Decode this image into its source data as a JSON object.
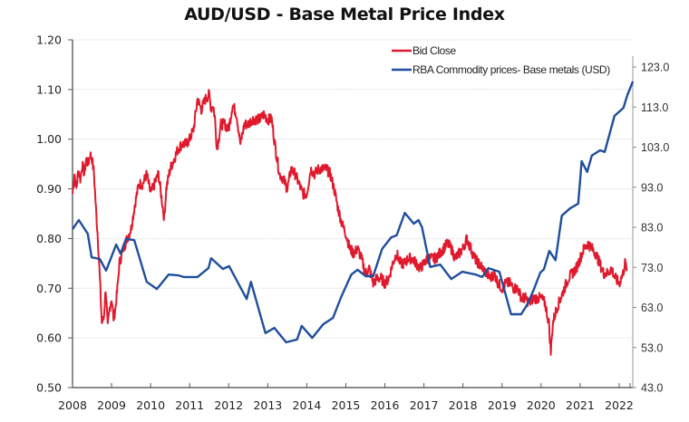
{
  "chart_data": {
    "type": "line",
    "title": "AUD/USD - Base Metal Price Index",
    "xlabel": "",
    "ylabel": "",
    "y2label": "",
    "xlim": [
      2008,
      2022.35
    ],
    "ylim": [
      0.5,
      1.2
    ],
    "y2lim": [
      43.0,
      123.0
    ],
    "grid": true,
    "legend_position": "top-right",
    "x_ticks": [
      "2008",
      "2009",
      "2010",
      "2011",
      "2012",
      "2013",
      "2014",
      "2015",
      "2016",
      "2017",
      "2018",
      "2019",
      "2020",
      "2021",
      "2022"
    ],
    "y_ticks": [
      "0.50",
      "0.60",
      "0.70",
      "0.80",
      "0.90",
      "1.00",
      "1.10",
      "1.20"
    ],
    "y2_ticks": [
      "43.0",
      "53.0",
      "63.0",
      "73.0",
      "83.0",
      "93.0",
      "103.0",
      "113.0",
      "123.0"
    ],
    "series": [
      {
        "name": "Bid Close",
        "axis": "left",
        "color": "#e0192d",
        "x": [
          2008.0,
          2008.05,
          2008.1,
          2008.15,
          2008.2,
          2008.25,
          2008.3,
          2008.35,
          2008.4,
          2008.45,
          2008.5,
          2008.55,
          2008.6,
          2008.65,
          2008.7,
          2008.75,
          2008.8,
          2008.85,
          2008.9,
          2008.95,
          2009.0,
          2009.05,
          2009.1,
          2009.15,
          2009.2,
          2009.3,
          2009.4,
          2009.5,
          2009.6,
          2009.7,
          2009.8,
          2009.9,
          2010.0,
          2010.1,
          2010.2,
          2010.3,
          2010.35,
          2010.4,
          2010.5,
          2010.6,
          2010.7,
          2010.8,
          2010.9,
          2011.0,
          2011.1,
          2011.2,
          2011.3,
          2011.4,
          2011.5,
          2011.55,
          2011.6,
          2011.65,
          2011.7,
          2011.8,
          2011.9,
          2012.0,
          2012.1,
          2012.2,
          2012.3,
          2012.4,
          2012.5,
          2012.6,
          2012.7,
          2012.8,
          2012.9,
          2013.0,
          2013.1,
          2013.2,
          2013.3,
          2013.4,
          2013.5,
          2013.6,
          2013.7,
          2013.8,
          2013.9,
          2014.0,
          2014.1,
          2014.2,
          2014.3,
          2014.4,
          2014.5,
          2014.6,
          2014.7,
          2014.8,
          2014.9,
          2015.0,
          2015.1,
          2015.2,
          2015.3,
          2015.4,
          2015.5,
          2015.6,
          2015.7,
          2015.8,
          2015.9,
          2016.0,
          2016.1,
          2016.2,
          2016.3,
          2016.4,
          2016.5,
          2016.6,
          2016.7,
          2016.8,
          2016.9,
          2017.0,
          2017.1,
          2017.2,
          2017.3,
          2017.4,
          2017.5,
          2017.6,
          2017.7,
          2017.8,
          2017.9,
          2018.0,
          2018.1,
          2018.2,
          2018.3,
          2018.4,
          2018.5,
          2018.6,
          2018.7,
          2018.8,
          2018.9,
          2019.0,
          2019.1,
          2019.2,
          2019.3,
          2019.4,
          2019.5,
          2019.6,
          2019.7,
          2019.8,
          2019.9,
          2020.0,
          2020.1,
          2020.15,
          2020.2,
          2020.25,
          2020.3,
          2020.4,
          2020.5,
          2020.6,
          2020.7,
          2020.8,
          2020.9,
          2021.0,
          2021.1,
          2021.2,
          2021.3,
          2021.4,
          2021.5,
          2021.6,
          2021.7,
          2021.8,
          2021.9,
          2022.0,
          2022.05,
          2022.1,
          2022.15,
          2022.2
        ],
        "values": [
          0.89,
          0.93,
          0.9,
          0.94,
          0.92,
          0.95,
          0.93,
          0.96,
          0.95,
          0.97,
          0.96,
          0.93,
          0.86,
          0.8,
          0.72,
          0.63,
          0.64,
          0.7,
          0.62,
          0.66,
          0.68,
          0.64,
          0.66,
          0.7,
          0.75,
          0.78,
          0.8,
          0.82,
          0.87,
          0.91,
          0.91,
          0.93,
          0.89,
          0.91,
          0.93,
          0.87,
          0.84,
          0.9,
          0.94,
          0.96,
          0.98,
          0.99,
          0.99,
          1.0,
          1.02,
          1.08,
          1.06,
          1.08,
          1.09,
          1.06,
          1.07,
          1.04,
          0.98,
          1.03,
          1.03,
          1.02,
          1.07,
          1.05,
          0.99,
          1.03,
          1.03,
          1.04,
          1.04,
          1.04,
          1.05,
          1.04,
          1.04,
          0.98,
          0.93,
          0.92,
          0.9,
          0.94,
          0.93,
          0.91,
          0.89,
          0.89,
          0.94,
          0.93,
          0.94,
          0.94,
          0.94,
          0.93,
          0.9,
          0.86,
          0.83,
          0.81,
          0.78,
          0.77,
          0.78,
          0.76,
          0.73,
          0.74,
          0.71,
          0.72,
          0.72,
          0.71,
          0.72,
          0.75,
          0.77,
          0.75,
          0.75,
          0.76,
          0.76,
          0.75,
          0.74,
          0.75,
          0.76,
          0.76,
          0.76,
          0.77,
          0.78,
          0.79,
          0.78,
          0.76,
          0.77,
          0.78,
          0.8,
          0.78,
          0.76,
          0.75,
          0.74,
          0.73,
          0.72,
          0.73,
          0.71,
          0.7,
          0.71,
          0.71,
          0.7,
          0.7,
          0.68,
          0.68,
          0.67,
          0.68,
          0.68,
          0.68,
          0.67,
          0.65,
          0.63,
          0.57,
          0.63,
          0.66,
          0.68,
          0.7,
          0.72,
          0.73,
          0.74,
          0.76,
          0.78,
          0.79,
          0.78,
          0.77,
          0.75,
          0.73,
          0.73,
          0.74,
          0.72,
          0.71,
          0.72,
          0.73,
          0.75,
          0.74
        ]
      },
      {
        "name": "RBA Commodity prices- Base metals (USD)",
        "axis": "right",
        "color": "#1f4e9c",
        "x": [
          2008.0,
          2008.16,
          2008.39,
          2008.49,
          2008.7,
          2008.86,
          2009.12,
          2009.23,
          2009.37,
          2009.58,
          2009.9,
          2010.16,
          2010.46,
          2010.71,
          2010.85,
          2011.2,
          2011.48,
          2011.55,
          2011.85,
          2012.01,
          2012.46,
          2012.57,
          2012.94,
          2013.17,
          2013.47,
          2013.75,
          2013.87,
          2014.14,
          2014.42,
          2014.67,
          2014.88,
          2015.14,
          2015.3,
          2015.51,
          2015.7,
          2015.93,
          2016.16,
          2016.3,
          2016.51,
          2016.74,
          2016.86,
          2016.95,
          2017.16,
          2017.42,
          2017.7,
          2017.98,
          2018.33,
          2018.49,
          2018.65,
          2018.93,
          2019.07,
          2019.23,
          2019.49,
          2019.65,
          2019.81,
          2019.98,
          2020.07,
          2020.21,
          2020.37,
          2020.53,
          2020.74,
          2020.95,
          2021.04,
          2021.18,
          2021.3,
          2021.51,
          2021.63,
          2021.88,
          2022.11,
          2022.21,
          2022.35
        ],
        "values": [
          82.5,
          84.8,
          81.4,
          75.5,
          75.1,
          72.2,
          78.7,
          76.4,
          80.1,
          79.8,
          69.4,
          67.6,
          71.2,
          71.0,
          70.6,
          70.6,
          72.8,
          75.3,
          72.6,
          73.3,
          65.1,
          69.4,
          56.6,
          57.9,
          54.3,
          55.0,
          58.4,
          55.4,
          58.8,
          60.4,
          65.6,
          71.2,
          72.4,
          70.8,
          70.8,
          77.6,
          80.5,
          81.0,
          86.6,
          83.9,
          84.8,
          83.0,
          73.1,
          73.7,
          70.1,
          71.9,
          71.2,
          70.6,
          72.8,
          71.9,
          67.0,
          61.3,
          61.3,
          63.8,
          67.4,
          71.7,
          72.5,
          77.1,
          74.8,
          85.9,
          87.7,
          88.9,
          99.5,
          96.8,
          100.9,
          102.2,
          101.8,
          110.8,
          112.8,
          116.0,
          119.4
        ]
      }
    ]
  }
}
